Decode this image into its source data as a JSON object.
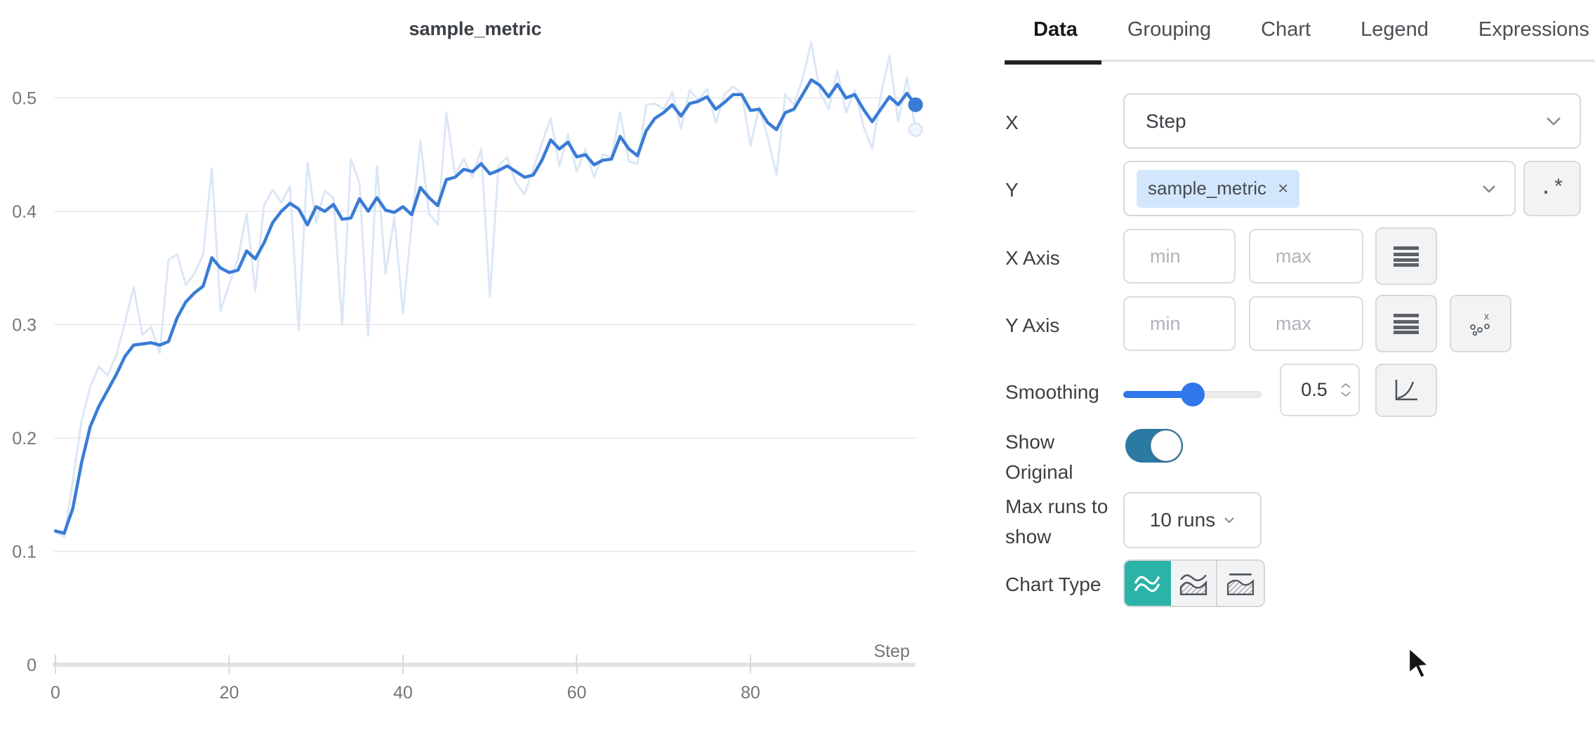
{
  "chart_data": {
    "type": "line",
    "title": "sample_metric",
    "xlabel": "Step",
    "x_ticks": [
      0,
      20,
      40,
      60,
      80
    ],
    "y_ticks": [
      0,
      0.1,
      0.2,
      0.3,
      0.4,
      0.5
    ],
    "x_range": [
      0,
      99
    ],
    "ylim": [
      0,
      0.55
    ],
    "grid": true,
    "legend": "none",
    "smoothing": 0.5,
    "series": [
      {
        "name": "original",
        "color": "#dbe7f6",
        "endpoint_style": "hollow",
        "values": [
          0.117,
          0.113,
          0.162,
          0.215,
          0.245,
          0.263,
          0.255,
          0.273,
          0.302,
          0.333,
          0.291,
          0.298,
          0.275,
          0.357,
          0.362,
          0.335,
          0.345,
          0.362,
          0.438,
          0.312,
          0.335,
          0.358,
          0.398,
          0.33,
          0.405,
          0.419,
          0.408,
          0.422,
          0.295,
          0.443,
          0.39,
          0.418,
          0.412,
          0.3,
          0.446,
          0.425,
          0.29,
          0.44,
          0.345,
          0.395,
          0.31,
          0.388,
          0.462,
          0.398,
          0.388,
          0.487,
          0.432,
          0.446,
          0.43,
          0.455,
          0.325,
          0.44,
          0.448,
          0.425,
          0.415,
          0.438,
          0.46,
          0.482,
          0.44,
          0.468,
          0.435,
          0.455,
          0.43,
          0.45,
          0.448,
          0.487,
          0.444,
          0.442,
          0.494,
          0.495,
          0.49,
          0.505,
          0.473,
          0.507,
          0.498,
          0.508,
          0.478,
          0.503,
          0.51,
          0.504,
          0.458,
          0.492,
          0.465,
          0.432,
          0.503,
          0.494,
          0.517,
          0.549,
          0.505,
          0.49,
          0.524,
          0.487,
          0.507,
          0.475,
          0.455,
          0.502,
          0.537,
          0.479,
          0.518,
          0.472
        ]
      },
      {
        "name": "smoothed",
        "color": "#3a7cd5",
        "endpoint_style": "solid",
        "values": [
          0.118,
          0.116,
          0.138,
          0.178,
          0.21,
          0.228,
          0.242,
          0.256,
          0.272,
          0.282,
          0.283,
          0.284,
          0.282,
          0.285,
          0.306,
          0.32,
          0.328,
          0.334,
          0.359,
          0.35,
          0.346,
          0.348,
          0.365,
          0.358,
          0.372,
          0.39,
          0.4,
          0.407,
          0.402,
          0.388,
          0.404,
          0.4,
          0.406,
          0.393,
          0.394,
          0.411,
          0.4,
          0.412,
          0.401,
          0.399,
          0.404,
          0.397,
          0.421,
          0.412,
          0.405,
          0.428,
          0.43,
          0.437,
          0.435,
          0.442,
          0.433,
          0.436,
          0.44,
          0.435,
          0.43,
          0.432,
          0.445,
          0.463,
          0.455,
          0.461,
          0.448,
          0.45,
          0.441,
          0.445,
          0.446,
          0.466,
          0.455,
          0.449,
          0.471,
          0.482,
          0.487,
          0.494,
          0.484,
          0.495,
          0.497,
          0.501,
          0.49,
          0.496,
          0.503,
          0.503,
          0.489,
          0.49,
          0.478,
          0.472,
          0.487,
          0.49,
          0.503,
          0.516,
          0.511,
          0.501,
          0.512,
          0.5,
          0.503,
          0.49,
          0.479,
          0.49,
          0.501,
          0.494,
          0.504,
          0.494
        ]
      }
    ]
  },
  "panel": {
    "tabs": [
      {
        "label": "Data",
        "active": true
      },
      {
        "label": "Grouping",
        "active": false
      },
      {
        "label": "Chart",
        "active": false
      },
      {
        "label": "Legend",
        "active": false
      },
      {
        "label": "Expressions",
        "active": false
      }
    ],
    "x_row": {
      "label": "X",
      "value": "Step"
    },
    "y_row": {
      "label": "Y",
      "tag": "sample_metric",
      "remove_glyph": "×",
      "regex_label": ".*"
    },
    "x_axis_row": {
      "label": "X Axis",
      "min_placeholder": "min",
      "max_placeholder": "max"
    },
    "y_axis_row": {
      "label": "Y Axis",
      "min_placeholder": "min",
      "max_placeholder": "max"
    },
    "smoothing_row": {
      "label": "Smoothing",
      "value": "0.5",
      "percent": 50
    },
    "show_original_row": {
      "label": "Show Original",
      "on": true
    },
    "max_runs_row": {
      "label": "Max runs to show",
      "value": "10 runs"
    },
    "chart_type_row": {
      "label": "Chart Type",
      "selected": "line",
      "options": [
        "line",
        "area",
        "percentile"
      ]
    }
  },
  "colors": {
    "smoothed_line": "#3a7cd5",
    "original_line": "#dbe7f6",
    "slider_blue": "#2f77ea",
    "toggle_on": "#2b7aa3",
    "chart_type_active": "#2bb3a7",
    "tag_bg": "#d2e7fc",
    "grid": "#e8e8e8",
    "axis": "#e3e3e3",
    "tick_text": "#72777c"
  }
}
